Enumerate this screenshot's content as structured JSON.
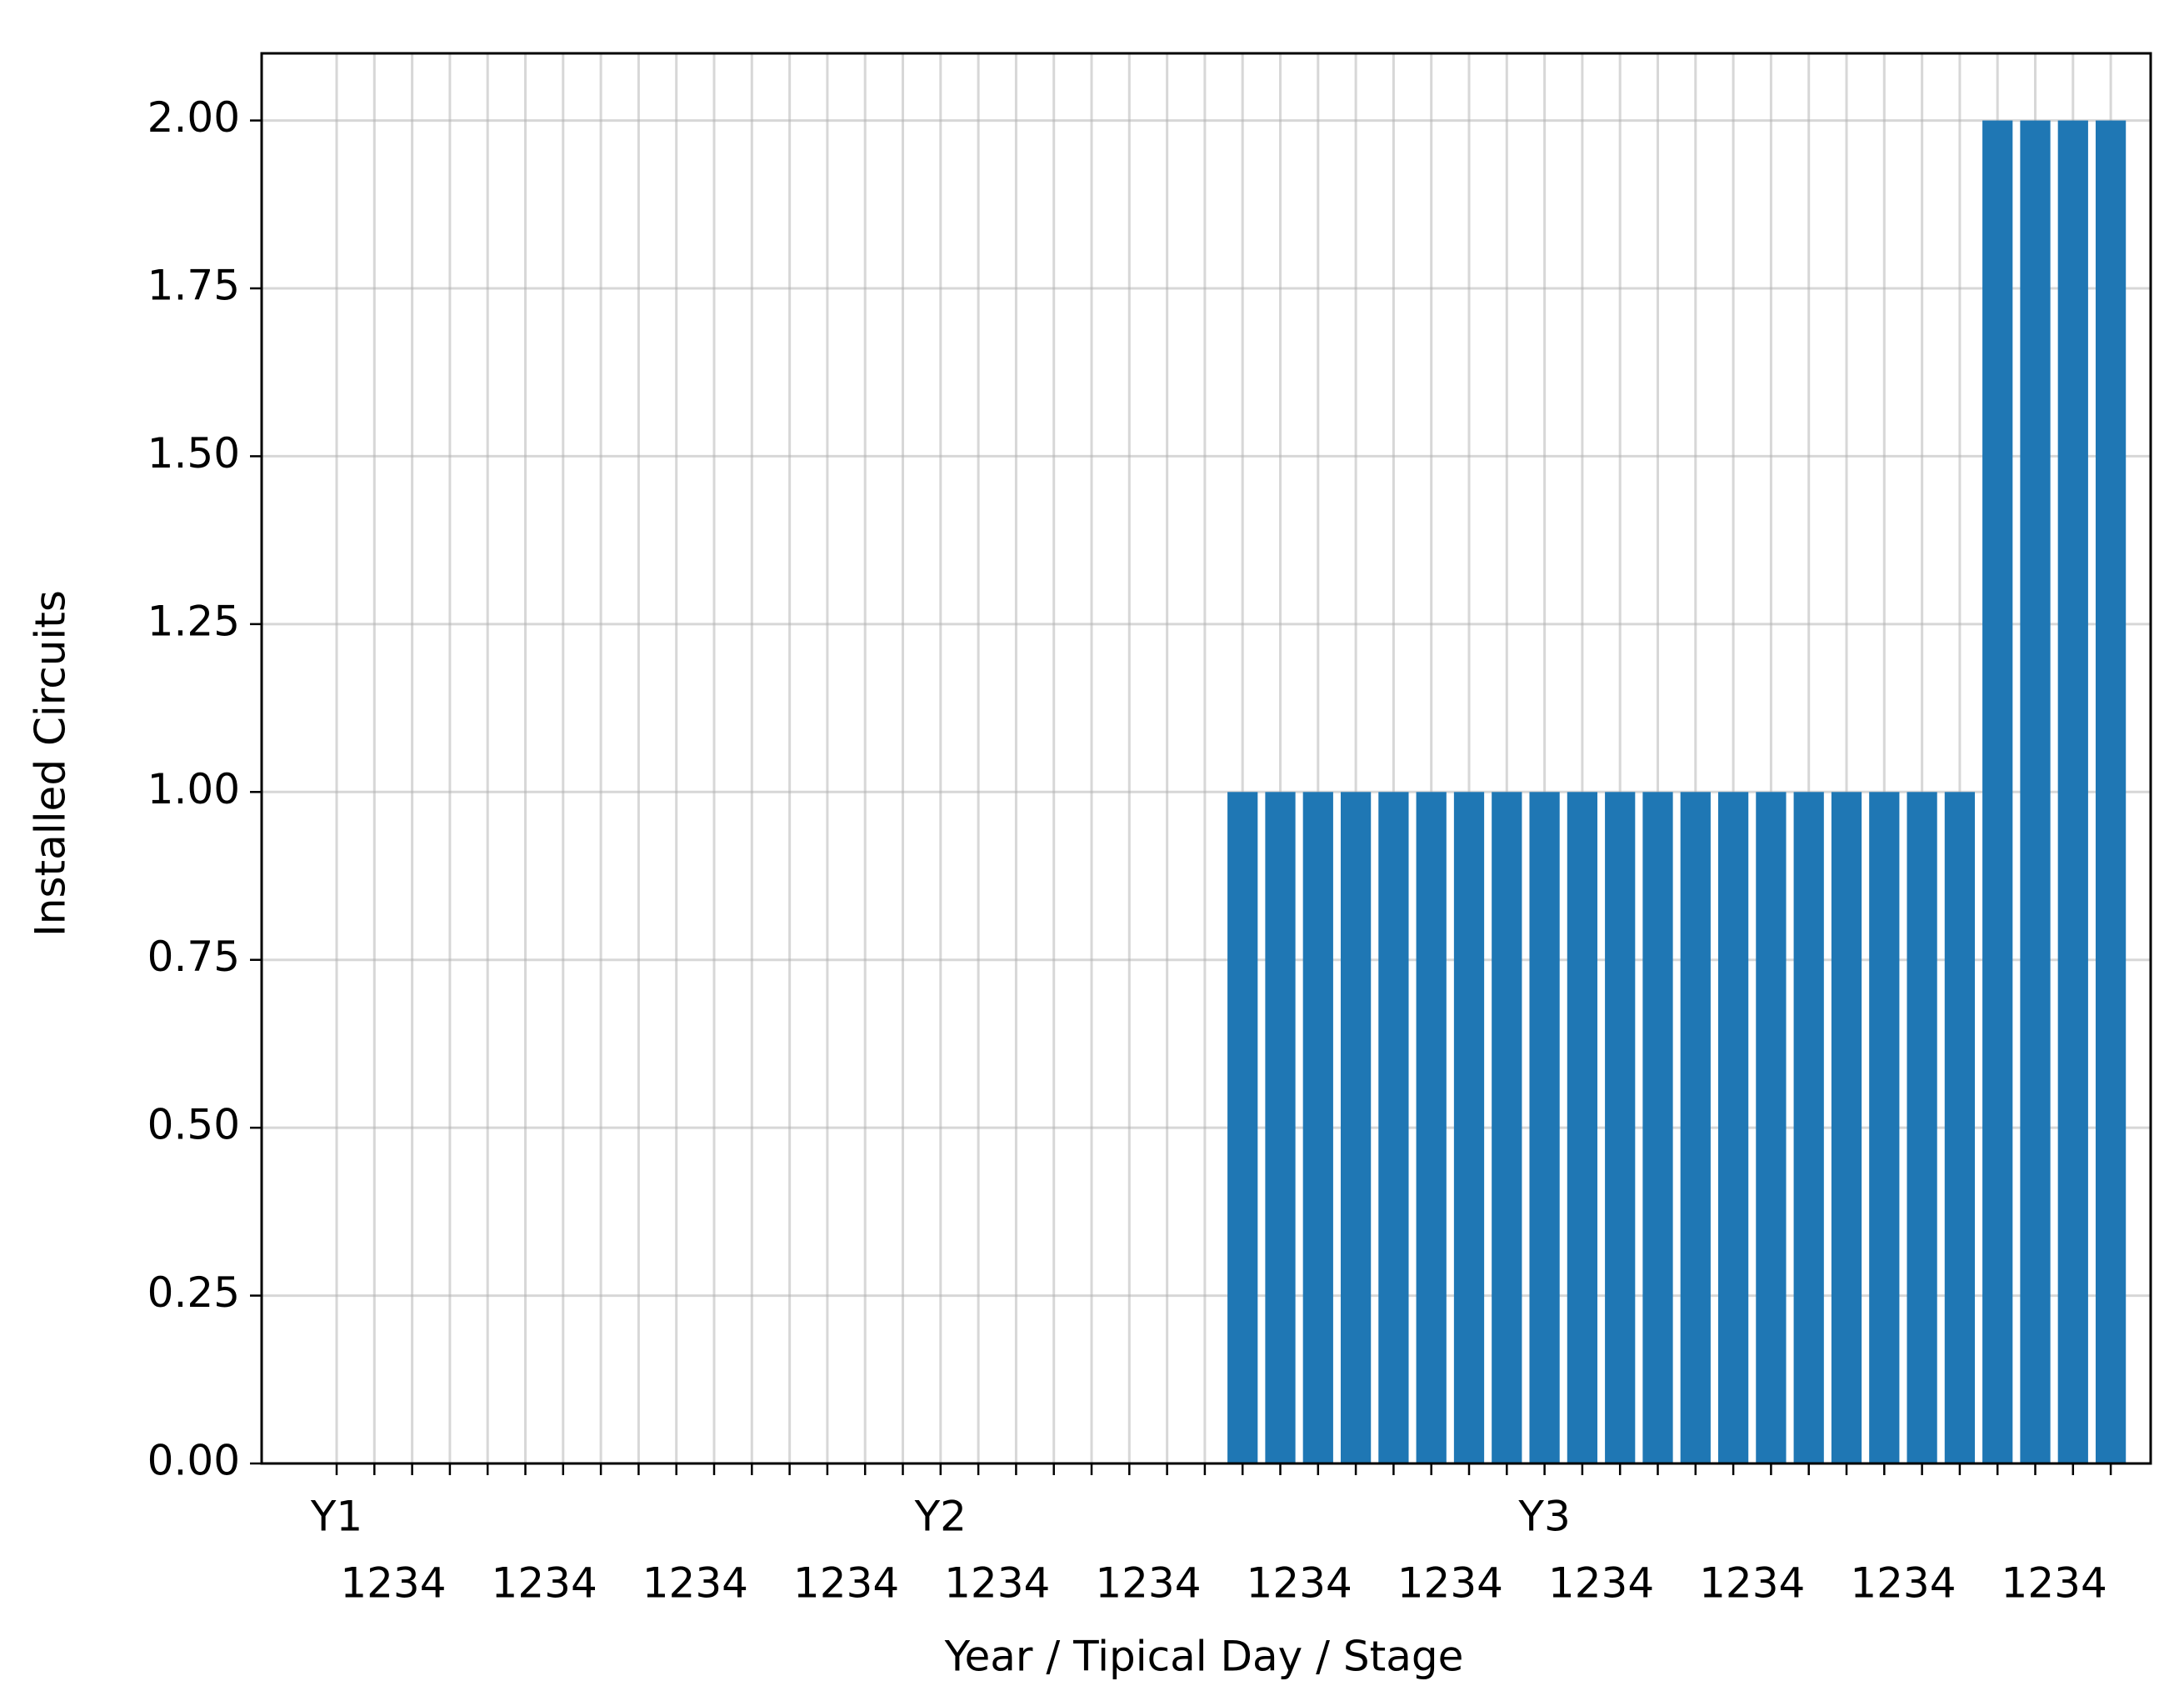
{
  "chart_data": {
    "type": "bar",
    "x_label": "Year / Tipical Day / Stage",
    "y_label": "Installed Circuits",
    "year_labels": [
      "Y1",
      "Y2",
      "Y3"
    ],
    "day_labels": [
      "1234",
      "1234",
      "1234",
      "1234",
      "1234",
      "1234",
      "1234",
      "1234",
      "1234",
      "1234",
      "1234",
      "1234"
    ],
    "values": [
      0,
      0,
      0,
      0,
      0,
      0,
      0,
      0,
      0,
      0,
      0,
      0,
      0,
      0,
      0,
      0,
      0,
      0,
      0,
      0,
      0,
      0,
      0,
      0,
      1,
      1,
      1,
      1,
      1,
      1,
      1,
      1,
      1,
      1,
      1,
      1,
      1,
      1,
      1,
      1,
      1,
      1,
      1,
      1,
      2,
      2,
      2,
      2
    ],
    "color": "#1f77b4",
    "ylim": [
      0,
      2.1
    ],
    "yticks": [
      {
        "value": 0,
        "label": "0.00"
      },
      {
        "value": 0.25,
        "label": "0.25"
      },
      {
        "value": 0.5,
        "label": "0.50"
      },
      {
        "value": 0.75,
        "label": "0.75"
      },
      {
        "value": 1,
        "label": "1.00"
      },
      {
        "value": 1.25,
        "label": "1.25"
      },
      {
        "value": 1.5,
        "label": "1.50"
      },
      {
        "value": 1.75,
        "label": "1.75"
      },
      {
        "value": 2,
        "label": "2.00"
      }
    ],
    "grid": true
  }
}
